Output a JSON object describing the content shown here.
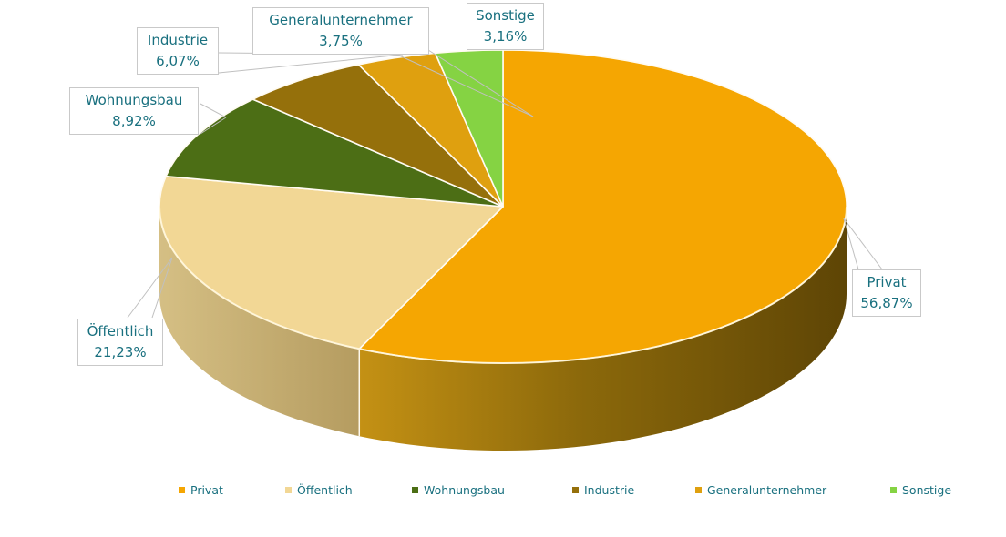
{
  "chart_data": {
    "type": "pie",
    "style": "3d",
    "title": "",
    "legend_position": "bottom",
    "categories": [
      "Privat",
      "Öffentlich",
      "Wohnungsbau",
      "Industrie",
      "Generalunternehmer",
      "Sonstige"
    ],
    "values": [
      56.87,
      21.23,
      8.92,
      6.07,
      3.75,
      3.16
    ],
    "labels_formatted": [
      "56,87%",
      "21,23%",
      "8,92%",
      "6,07%",
      "3,75%",
      "3,16%"
    ],
    "colors": [
      "#F5A602",
      "#F2D795",
      "#4C6E15",
      "#95700B",
      "#DFA00F",
      "#85D343"
    ],
    "side_colors": {
      "privat": [
        "#C49114",
        "#8C690B",
        "#5E4505"
      ],
      "oeffentlich": [
        "#D5BF84",
        "#B59C60"
      ]
    },
    "label_text_color": "#19707F",
    "callout_border_color": "#C9C9C9",
    "leader_line_color": "#C0C0C0",
    "slice_border_color": "#FFFBF2"
  }
}
